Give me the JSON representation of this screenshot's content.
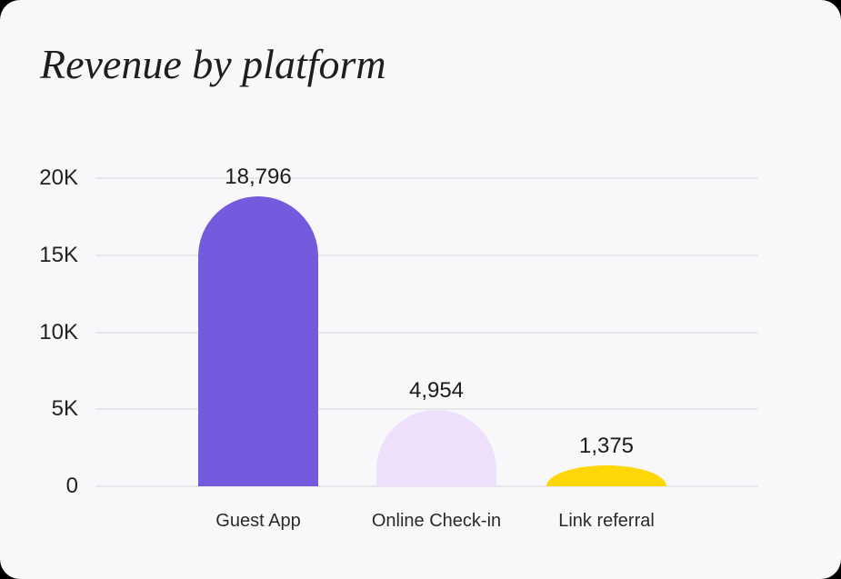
{
  "page": {
    "background_color": "#000000",
    "card_background_color": "#f8f8fa"
  },
  "chart_data": {
    "type": "bar",
    "title": "Revenue by platform",
    "categories": [
      "Guest App",
      "Online Check-in",
      "Link referral"
    ],
    "values": [
      18796,
      4954,
      1375
    ],
    "value_labels": [
      "18,796",
      "4,954",
      "1,375"
    ],
    "xlabel": "",
    "ylabel": "",
    "ylim": [
      0,
      20000
    ],
    "y_ticks": [
      "20K",
      "15K",
      "10K",
      "5K",
      "0"
    ],
    "y_tick_values": [
      20000,
      15000,
      10000,
      5000,
      0
    ],
    "grid": "horizontal gridlines",
    "legend": "none",
    "bar_colors": [
      "#745BDE",
      "#EEE0FB",
      "#FFD606"
    ],
    "gridline_color": "#e8e7eb",
    "title_color": "#1f1e1c",
    "text_color": "#1f1f1f"
  }
}
